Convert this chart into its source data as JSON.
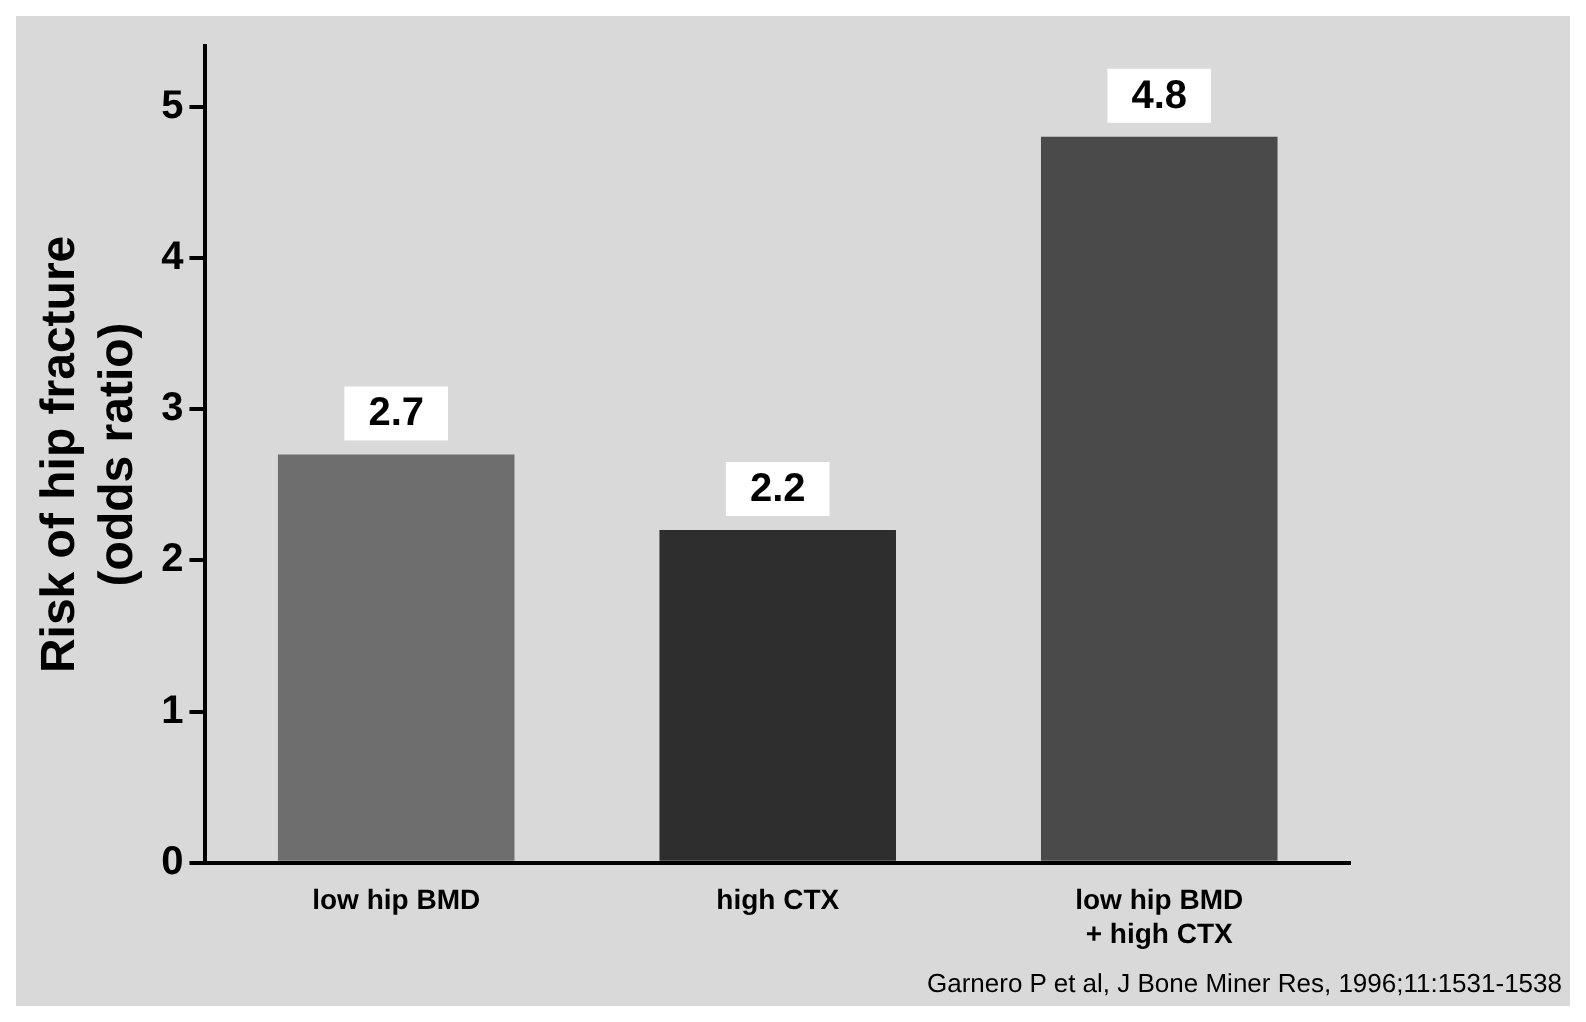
{
  "chart_data": {
    "type": "bar",
    "ylabel": "Risk of hip fracture\n(odds ratio)",
    "categories": [
      "low hip BMD",
      "high CTX",
      "low hip BMD\n+ high CTX"
    ],
    "values": [
      2.7,
      2.2,
      4.8
    ],
    "colors": [
      "#6e6e6e",
      "#2e2e2e",
      "#4a4a4a"
    ],
    "ylim": [
      0,
      5.4
    ],
    "yticks": [
      0,
      1,
      2,
      3,
      4,
      5
    ],
    "data_labels": true,
    "annotations": [
      "Garnero P et al, J Bone Miner Res, 1996;11:1531-1538"
    ]
  }
}
